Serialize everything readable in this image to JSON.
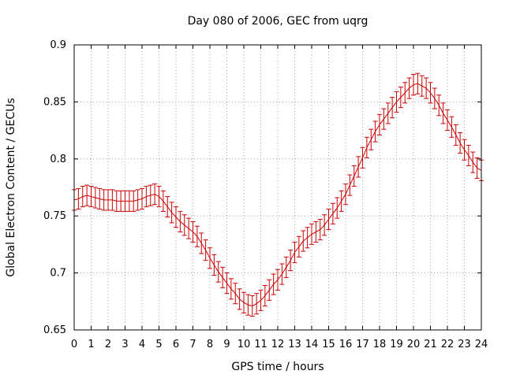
{
  "chart_data": {
    "type": "line",
    "title": "Day 080 of 2006, GEC from uqrg",
    "xlabel": "GPS time / hours",
    "ylabel": "Global Electron Content / GECUs",
    "xlim": [
      0,
      24
    ],
    "ylim": [
      0.65,
      0.9
    ],
    "xticks": [
      "0",
      "1",
      "2",
      "3",
      "4",
      "5",
      "6",
      "7",
      "8",
      "9",
      "10",
      "11",
      "12",
      "13",
      "14",
      "15",
      "16",
      "17",
      "18",
      "19",
      "20",
      "21",
      "22",
      "23",
      "24"
    ],
    "yticks": [
      "0.65",
      "0.7",
      "0.75",
      "0.8",
      "0.85",
      "0.9"
    ],
    "grid": true,
    "color": "#cc0000",
    "series": [
      {
        "x": [
          0,
          0.25,
          0.5,
          0.75,
          1,
          1.25,
          1.5,
          1.75,
          2,
          2.25,
          2.5,
          2.75,
          3,
          3.25,
          3.5,
          3.75,
          4,
          4.25,
          4.5,
          4.75,
          5,
          5.25,
          5.5,
          5.75,
          6,
          6.25,
          6.5,
          6.75,
          7,
          7.25,
          7.5,
          7.75,
          8,
          8.25,
          8.5,
          8.75,
          9,
          9.25,
          9.5,
          9.75,
          10,
          10.25,
          10.5,
          10.75,
          11,
          11.25,
          11.5,
          11.75,
          12,
          12.25,
          12.5,
          12.75,
          13,
          13.25,
          13.5,
          13.75,
          14,
          14.25,
          14.5,
          14.75,
          15,
          15.25,
          15.5,
          15.75,
          16,
          16.25,
          16.5,
          16.75,
          17,
          17.25,
          17.5,
          17.75,
          18,
          18.25,
          18.5,
          18.75,
          19,
          19.25,
          19.5,
          19.75,
          20,
          20.25,
          20.5,
          20.75,
          21,
          21.25,
          21.5,
          21.75,
          22,
          22.25,
          22.5,
          22.75,
          23,
          23.25,
          23.5,
          23.75,
          24
        ],
        "y": [
          0.764,
          0.765,
          0.767,
          0.768,
          0.767,
          0.766,
          0.765,
          0.764,
          0.764,
          0.764,
          0.763,
          0.763,
          0.763,
          0.763,
          0.763,
          0.764,
          0.765,
          0.767,
          0.768,
          0.769,
          0.767,
          0.763,
          0.758,
          0.753,
          0.749,
          0.745,
          0.742,
          0.739,
          0.736,
          0.732,
          0.726,
          0.72,
          0.713,
          0.707,
          0.701,
          0.696,
          0.691,
          0.686,
          0.682,
          0.677,
          0.674,
          0.672,
          0.671,
          0.673,
          0.676,
          0.68,
          0.685,
          0.69,
          0.694,
          0.699,
          0.705,
          0.711,
          0.718,
          0.723,
          0.728,
          0.731,
          0.734,
          0.736,
          0.738,
          0.742,
          0.747,
          0.752,
          0.757,
          0.763,
          0.769,
          0.777,
          0.785,
          0.793,
          0.801,
          0.81,
          0.817,
          0.824,
          0.83,
          0.835,
          0.84,
          0.845,
          0.85,
          0.854,
          0.858,
          0.862,
          0.865,
          0.866,
          0.864,
          0.862,
          0.858,
          0.853,
          0.847,
          0.84,
          0.834,
          0.828,
          0.821,
          0.814,
          0.808,
          0.803,
          0.797,
          0.792,
          0.79
        ],
        "error": 0.009
      }
    ]
  }
}
